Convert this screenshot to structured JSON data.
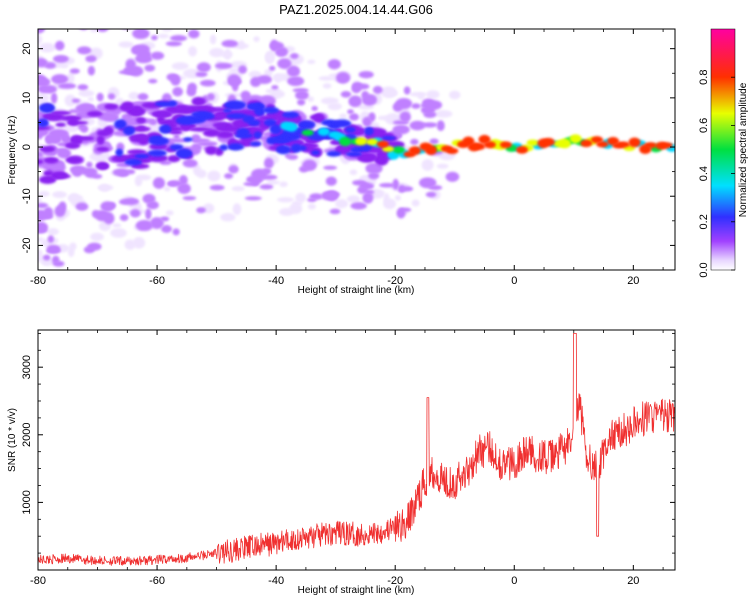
{
  "title": "PAZ1.2025.004.14.44.G06",
  "colors": {
    "snr_line": "#f03030",
    "frame": "#000000",
    "background": "#ffffff"
  },
  "chart_data": [
    {
      "type": "heatmap",
      "xlabel": "Height of straight line (km)",
      "ylabel": "Frequency (Hz)",
      "xlim": [
        -80,
        27
      ],
      "ylim": [
        -25,
        24
      ],
      "xticks": [
        -80,
        -60,
        -40,
        -20,
        0,
        20
      ],
      "yticks": [
        -20,
        -10,
        0,
        10,
        20
      ],
      "colorbar": {
        "label": "Normalized spectral amplitude",
        "range": [
          0.0,
          1.0
        ],
        "ticks": [
          0.0,
          0.2,
          0.4,
          0.6,
          0.8
        ],
        "colormap": "rainbow (white-purple-blue-cyan-green-yellow-red-magenta)"
      },
      "dominant_signal": [
        {
          "x": -80,
          "freq": 0
        },
        {
          "x": -45,
          "freq": 5
        },
        {
          "x": -35,
          "freq": 3
        },
        {
          "x": -25,
          "freq": 1
        },
        {
          "x": -20,
          "freq": -1
        },
        {
          "x": -10,
          "freq": 0
        },
        {
          "x": -5,
          "freq": 1
        },
        {
          "x": 0,
          "freq": 0
        },
        {
          "x": 10,
          "freq": 1
        },
        {
          "x": 27,
          "freq": 0
        }
      ]
    },
    {
      "type": "line",
      "xlabel": "Height of straight line (km)",
      "ylabel": "SNR (10 * v/v)",
      "xlim": [
        -80,
        27
      ],
      "ylim": [
        0,
        3550
      ],
      "xticks": [
        -80,
        -60,
        -40,
        -20,
        0,
        20
      ],
      "yticks": [
        1000,
        2000,
        3000
      ],
      "series": [
        {
          "x": [
            -80,
            -75,
            -70,
            -65,
            -60,
            -55,
            -50,
            -45,
            -40,
            -35,
            -30,
            -25,
            -20,
            -18,
            -16,
            -14,
            -12,
            -10,
            -8,
            -6,
            -4,
            -2,
            0,
            2,
            4,
            6,
            8,
            10,
            11,
            12,
            14,
            16,
            18,
            20,
            22,
            24,
            27
          ],
          "values": [
            150,
            170,
            140,
            130,
            150,
            180,
            250,
            330,
            400,
            480,
            550,
            520,
            620,
            700,
            1100,
            1500,
            1350,
            1300,
            1450,
            1750,
            1800,
            1550,
            1600,
            1750,
            1700,
            1650,
            1780,
            1900,
            2500,
            1700,
            1500,
            1950,
            2050,
            2150,
            2250,
            2300,
            2250
          ]
        }
      ]
    }
  ]
}
